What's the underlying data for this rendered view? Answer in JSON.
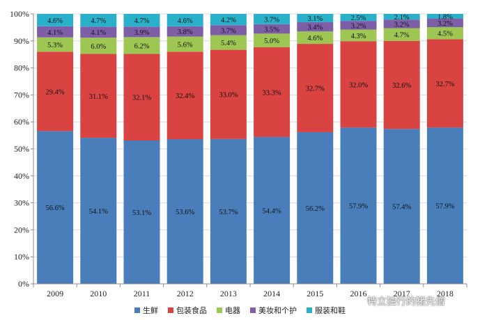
{
  "chart_data": {
    "type": "bar",
    "stacked": true,
    "categories": [
      "2009",
      "2010",
      "2011",
      "2012",
      "2013",
      "2014",
      "2015",
      "2016",
      "2017",
      "2018"
    ],
    "series": [
      {
        "name": "生鲜",
        "color": "#4a7ebb",
        "values": [
          56.6,
          54.1,
          53.1,
          53.6,
          53.7,
          54.4,
          56.2,
          57.9,
          57.4,
          57.9
        ],
        "labels": [
          "56.6%",
          "54.1%",
          "53.1%",
          "53.6%",
          "53.7%",
          "54.4%",
          "56.2%",
          "57.9%",
          "57.4%",
          "57.9%"
        ]
      },
      {
        "name": "包装食品",
        "color": "#d94341",
        "values": [
          29.4,
          31.1,
          32.1,
          32.4,
          33.0,
          33.3,
          32.7,
          32.0,
          32.6,
          32.7
        ],
        "labels": [
          "29.4%",
          "31.1%",
          "32.1%",
          "32.4%",
          "33.0%",
          "33.3%",
          "32.7%",
          "32.0%",
          "32.6%",
          "32.7%"
        ]
      },
      {
        "name": "电器",
        "color": "#9dc653",
        "values": [
          5.3,
          6.0,
          6.2,
          5.6,
          5.4,
          5.0,
          4.6,
          4.3,
          4.7,
          4.5
        ],
        "labels": [
          "5.3%",
          "6.0%",
          "6.2%",
          "5.6%",
          "5.4%",
          "5.0%",
          "4.6%",
          "4.3%",
          "4.7%",
          "4.5%"
        ]
      },
      {
        "name": "美妆和个护",
        "color": "#7f5ea8",
        "values": [
          4.1,
          4.1,
          3.9,
          3.8,
          3.7,
          3.5,
          3.4,
          3.2,
          3.2,
          3.2
        ],
        "labels": [
          "4.1%",
          "4.1%",
          "3.9%",
          "3.8%",
          "3.7%",
          "3.5%",
          "3.4%",
          "3.2%",
          "3.2%",
          "3.2%"
        ]
      },
      {
        "name": "服装和鞋",
        "color": "#2ab1c9",
        "values": [
          4.6,
          4.7,
          4.7,
          4.6,
          4.2,
          3.7,
          3.1,
          2.5,
          2.1,
          1.8
        ],
        "labels": [
          "4.6%",
          "4.7%",
          "4.7%",
          "4.6%",
          "4.2%",
          "3.7%",
          "3.1%",
          "2.5%",
          "2.1%",
          "1.8%"
        ]
      }
    ],
    "yticks": [
      "0%",
      "10%",
      "20%",
      "30%",
      "40%",
      "50%",
      "60%",
      "70%",
      "80%",
      "90%",
      "100%"
    ],
    "ylim": [
      0,
      100
    ],
    "title": "",
    "xlabel": "",
    "ylabel": "",
    "legend_position": "bottom"
  },
  "watermark": {
    "text": "特立独行的猪先僧",
    "icon": "wechat-icon"
  }
}
